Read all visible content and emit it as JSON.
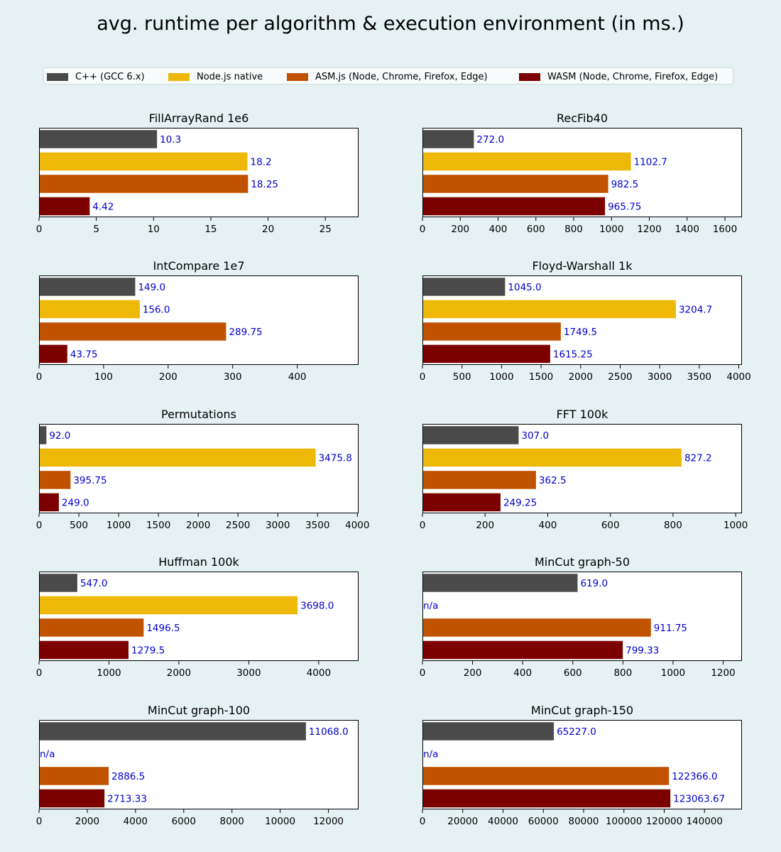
{
  "title": "avg. runtime per algorithm & execution environment (in ms.)",
  "legend": [
    {
      "label": "C++ (GCC 6.x)",
      "color": "#4a4a4a"
    },
    {
      "label": "Node.js native",
      "color": "#eeb808"
    },
    {
      "label": "ASM.js (Node, Chrome, Firefox, Edge)",
      "color": "#c05200"
    },
    {
      "label": "WASM (Node, Chrome, Firefox, Edge)",
      "color": "#7c0000"
    }
  ],
  "label_color": "#0000cc",
  "chart_data": [
    {
      "type": "bar",
      "orientation": "horizontal",
      "title": "FillArrayRand 1e6",
      "values": [
        10.3,
        18.2,
        18.25,
        4.42
      ],
      "labels": [
        "10.3",
        "18.2",
        "18.25",
        "4.42"
      ],
      "xlim": [
        0,
        27.9
      ],
      "xticks": [
        "0",
        "5",
        "10",
        "15",
        "20",
        "25"
      ]
    },
    {
      "type": "bar",
      "orientation": "horizontal",
      "title": "RecFib40",
      "values": [
        272.0,
        1102.7,
        982.5,
        965.75
      ],
      "labels": [
        "272.0",
        "1102.7",
        "982.5",
        "965.75"
      ],
      "xlim": [
        0,
        1690
      ],
      "xticks": [
        "0",
        "200",
        "400",
        "600",
        "800",
        "1000",
        "1200",
        "1400",
        "1600"
      ]
    },
    {
      "type": "bar",
      "orientation": "horizontal",
      "title": "IntCompare 1e7",
      "values": [
        149.0,
        156.0,
        289.75,
        43.75
      ],
      "labels": [
        "149.0",
        "156.0",
        "289.75",
        "43.75"
      ],
      "xlim": [
        0,
        495
      ],
      "xticks": [
        "0",
        "100",
        "200",
        "300",
        "400"
      ]
    },
    {
      "type": "bar",
      "orientation": "horizontal",
      "title": "Floyd-Warshall 1k",
      "values": [
        1045.0,
        3204.7,
        1749.5,
        1615.25
      ],
      "labels": [
        "1045.0",
        "3204.7",
        "1749.5",
        "1615.25"
      ],
      "xlim": [
        0,
        4040
      ],
      "xticks": [
        "0",
        "500",
        "1000",
        "1500",
        "2000",
        "2500",
        "3000",
        "3500",
        "4000"
      ]
    },
    {
      "type": "bar",
      "orientation": "horizontal",
      "title": "Permutations",
      "values": [
        92.0,
        3475.8,
        395.75,
        249.0
      ],
      "labels": [
        "92.0",
        "3475.8",
        "395.75",
        "249.0"
      ],
      "xlim": [
        0,
        4015
      ],
      "xticks": [
        "0",
        "500",
        "1000",
        "1500",
        "2000",
        "2500",
        "3000",
        "3500",
        "4000"
      ]
    },
    {
      "type": "bar",
      "orientation": "horizontal",
      "title": "FFT 100k",
      "values": [
        307.0,
        827.2,
        362.5,
        249.25
      ],
      "labels": [
        "307.0",
        "827.2",
        "362.5",
        "249.25"
      ],
      "xlim": [
        0,
        1020
      ],
      "xticks": [
        "0",
        "200",
        "400",
        "600",
        "800",
        "1000"
      ]
    },
    {
      "type": "bar",
      "orientation": "horizontal",
      "title": "Huffman 100k",
      "values": [
        547.0,
        3698.0,
        1496.5,
        1279.5
      ],
      "labels": [
        "547.0",
        "3698.0",
        "1496.5",
        "1279.5"
      ],
      "xlim": [
        0,
        4570
      ],
      "xticks": [
        "0",
        "1000",
        "2000",
        "3000",
        "4000"
      ]
    },
    {
      "type": "bar",
      "orientation": "horizontal",
      "title": "MinCut graph-50",
      "values": [
        619.0,
        null,
        911.75,
        799.33
      ],
      "labels": [
        "619.0",
        "n/a",
        "911.75",
        "799.33"
      ],
      "xlim": [
        0,
        1275
      ],
      "xticks": [
        "0",
        "200",
        "400",
        "600",
        "800",
        "1000",
        "1200"
      ]
    },
    {
      "type": "bar",
      "orientation": "horizontal",
      "title": "MinCut graph-100",
      "values": [
        11068.0,
        null,
        2886.5,
        2713.33
      ],
      "labels": [
        "11068.0",
        "n/a",
        "2886.5",
        "2713.33"
      ],
      "xlim": [
        0,
        13250
      ],
      "xticks": [
        "0",
        "2000",
        "4000",
        "6000",
        "8000",
        "10000",
        "12000"
      ]
    },
    {
      "type": "bar",
      "orientation": "horizontal",
      "title": "MinCut graph-150",
      "values": [
        65227.0,
        null,
        122366.0,
        123063.67
      ],
      "labels": [
        "65227.0",
        "n/a",
        "122366.0",
        "123063.67"
      ],
      "xlim": [
        0,
        158600
      ],
      "xticks": [
        "0",
        "20000",
        "40000",
        "60000",
        "80000",
        "100000",
        "120000",
        "140000"
      ]
    }
  ]
}
